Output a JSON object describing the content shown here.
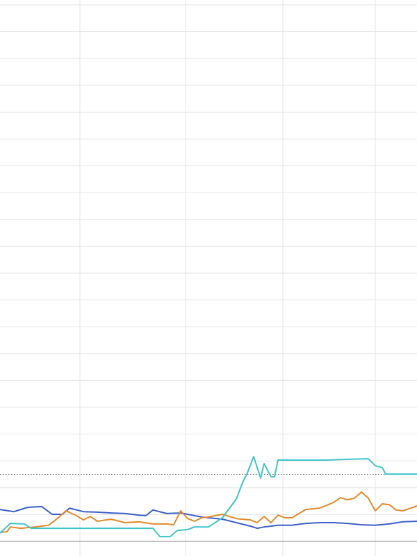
{
  "chart_data": {
    "type": "line",
    "title": "",
    "xlabel": "",
    "ylabel": "",
    "xlim": [
      0,
      60
    ],
    "ylim": [
      0,
      20.18
    ],
    "grid": true,
    "x_gridlines": [
      11.5,
      26.7,
      40.7,
      54
    ],
    "y_gridlines_step": 1,
    "reference_line": {
      "y": 2.5,
      "style": "dotted",
      "color": "#555555"
    },
    "axis_color": "#9e9e9e",
    "grid_color": "#e6e6e6",
    "series": [
      {
        "color": "#3b5fc8",
        "x": [
          0,
          2,
          4,
          6,
          7.5,
          9,
          10,
          12,
          14,
          16,
          18,
          20,
          21,
          22,
          24,
          26,
          27,
          29,
          30,
          32,
          34,
          36,
          37,
          38,
          39,
          40,
          42,
          44,
          46,
          48,
          50,
          52,
          54,
          56,
          58,
          60
        ],
        "y": [
          1.19,
          1.11,
          1.27,
          1.3,
          1.01,
          1.01,
          1.24,
          1.11,
          1.09,
          1.06,
          1.04,
          0.98,
          0.96,
          1.17,
          1.04,
          1.06,
          1.01,
          0.91,
          0.88,
          0.83,
          0.7,
          0.57,
          0.49,
          0.54,
          0.57,
          0.6,
          0.6,
          0.67,
          0.7,
          0.7,
          0.67,
          0.62,
          0.6,
          0.65,
          0.73,
          0.75
        ]
      },
      {
        "color": "#e08a2c",
        "x": [
          0,
          1,
          1.5,
          3,
          5,
          7,
          8,
          9.5,
          11,
          12,
          13,
          14,
          16,
          18,
          20,
          22,
          24,
          25,
          26,
          27,
          28,
          29,
          30,
          32,
          34,
          36,
          37,
          38,
          39,
          40,
          41,
          42,
          44,
          46,
          48,
          49,
          50,
          51,
          52,
          53,
          54,
          55,
          56,
          57,
          58,
          60
        ],
        "y": [
          0.34,
          0.36,
          0.54,
          0.49,
          0.54,
          0.6,
          0.8,
          1.14,
          0.96,
          0.8,
          0.93,
          0.75,
          0.83,
          0.7,
          0.73,
          0.65,
          0.65,
          0.62,
          1.14,
          0.85,
          0.75,
          0.88,
          0.91,
          1.01,
          0.85,
          0.8,
          0.7,
          0.93,
          0.7,
          0.98,
          0.88,
          0.88,
          1.19,
          1.24,
          1.45,
          1.63,
          1.55,
          1.61,
          1.84,
          1.61,
          1.14,
          1.4,
          1.37,
          1.17,
          1.14,
          1.32
        ]
      },
      {
        "color": "#3ec4c9",
        "x": [
          0,
          1.5,
          3.5,
          4.5,
          22,
          23,
          24.5,
          25.5,
          27,
          28,
          30,
          32,
          34,
          35,
          35.5,
          36.5,
          37.5,
          38,
          39,
          39.5,
          40,
          47,
          50,
          53,
          54,
          55,
          55.5,
          60
        ],
        "y": [
          0.31,
          0.67,
          0.65,
          0.49,
          0.49,
          0.18,
          0.18,
          0.41,
          0.44,
          0.54,
          0.54,
          0.88,
          1.58,
          2.25,
          2.49,
          3.16,
          2.36,
          2.9,
          2.41,
          2.41,
          3.03,
          3.03,
          3.06,
          3.08,
          2.82,
          2.75,
          2.51,
          2.51
        ]
      }
    ]
  }
}
